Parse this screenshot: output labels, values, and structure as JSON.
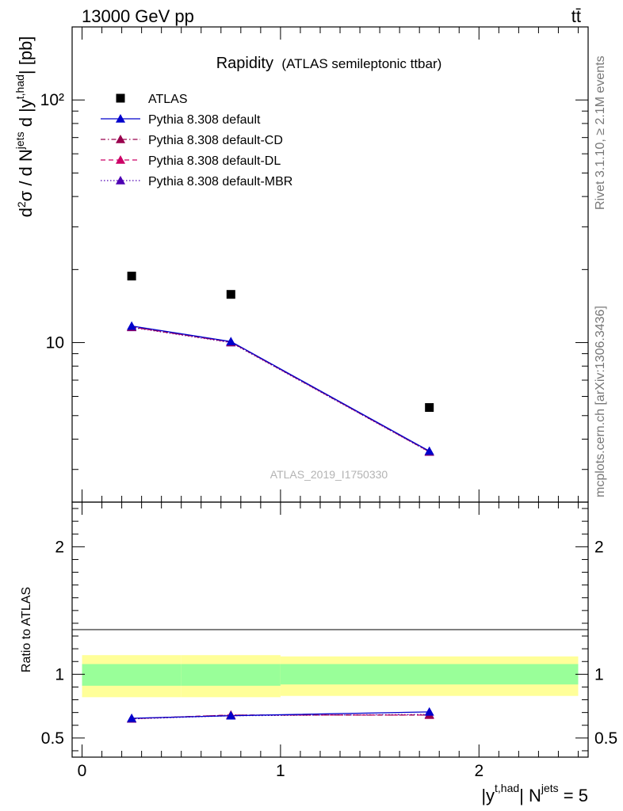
{
  "header": {
    "left": "13000 GeV pp",
    "right": "tt̄"
  },
  "side_text": {
    "rivet": "Rivet 3.1.10, ≥ 2.1M events",
    "mcplots": "mcplots.cern.ch [arXiv:1306.3436]"
  },
  "watermark": "ATLAS_2019_I1750330",
  "colors": {
    "atlas": "#000000",
    "default": "#0000cc",
    "cd": "#99004d",
    "dl": "#cc0066",
    "mbr": "#4d00b3",
    "band_inner": "#99ff99",
    "band_outer": "#ffff99"
  },
  "chart_data": [
    {
      "type": "scatter",
      "title_main": "Rapidity",
      "title_sub": "(ATLAS semileptonic ttbar)",
      "ylabel": "d²σ / d N^jets d |y^t,had| [pb]",
      "yscale": "log",
      "ylim": [
        2.2,
        200
      ],
      "xlim": [
        -0.05,
        2.55
      ],
      "y_ticks": [
        {
          "value": 10,
          "label": "10"
        },
        {
          "value": 100,
          "label": "10²"
        }
      ],
      "legend_position": "top-left",
      "x": [
        0.25,
        0.75,
        1.75
      ],
      "series": [
        {
          "name": "ATLAS",
          "style": "square",
          "values": [
            18.8,
            15.8,
            5.4
          ]
        },
        {
          "name": "Pythia 8.308 default",
          "style": "solid",
          "values": [
            11.7,
            10.1,
            3.57
          ]
        },
        {
          "name": "Pythia 8.308 default-CD",
          "style": "dashdot",
          "values": [
            11.6,
            10.05,
            3.55
          ]
        },
        {
          "name": "Pythia 8.308 default-DL",
          "style": "dashed",
          "values": [
            11.6,
            10.05,
            3.55
          ]
        },
        {
          "name": "Pythia 8.308 default-MBR",
          "style": "dotted",
          "values": [
            11.55,
            10.0,
            3.54
          ]
        }
      ]
    },
    {
      "type": "line",
      "ylabel": "Ratio to ATLAS",
      "xlabel_main": "|y^t,had| N^jets = 5",
      "ylim": [
        0.35,
        2.35
      ],
      "xlim": [
        -0.05,
        2.55
      ],
      "x_ticks": [
        {
          "value": 0,
          "label": "0"
        },
        {
          "value": 1,
          "label": "1"
        },
        {
          "value": 2,
          "label": "2"
        }
      ],
      "y_ticks": [
        {
          "value": 0.5,
          "label": "0.5"
        },
        {
          "value": 1,
          "label": "1"
        },
        {
          "value": 2,
          "label": "2"
        }
      ],
      "bands": [
        {
          "x0": 0.0,
          "x1": 0.5,
          "inner": [
            0.91,
            1.08
          ],
          "outer": [
            0.82,
            1.15
          ]
        },
        {
          "x0": 0.5,
          "x1": 1.0,
          "inner": [
            0.91,
            1.08
          ],
          "outer": [
            0.82,
            1.15
          ]
        },
        {
          "x0": 1.0,
          "x1": 2.5,
          "inner": [
            0.92,
            1.08
          ],
          "outer": [
            0.83,
            1.14
          ]
        }
      ],
      "x": [
        0.25,
        0.75,
        1.75
      ],
      "series": [
        {
          "name": "Pythia 8.308 default",
          "style": "solid",
          "values": [
            0.655,
            0.675,
            0.705
          ]
        },
        {
          "name": "Pythia 8.308 default-CD",
          "style": "dashdot",
          "values": [
            0.652,
            0.68,
            0.68
          ]
        },
        {
          "name": "Pythia 8.308 default-DL",
          "style": "dashed",
          "values": [
            0.652,
            0.68,
            0.68
          ]
        },
        {
          "name": "Pythia 8.308 default-MBR",
          "style": "dotted",
          "values": [
            0.65,
            0.675,
            0.685
          ]
        }
      ]
    }
  ]
}
